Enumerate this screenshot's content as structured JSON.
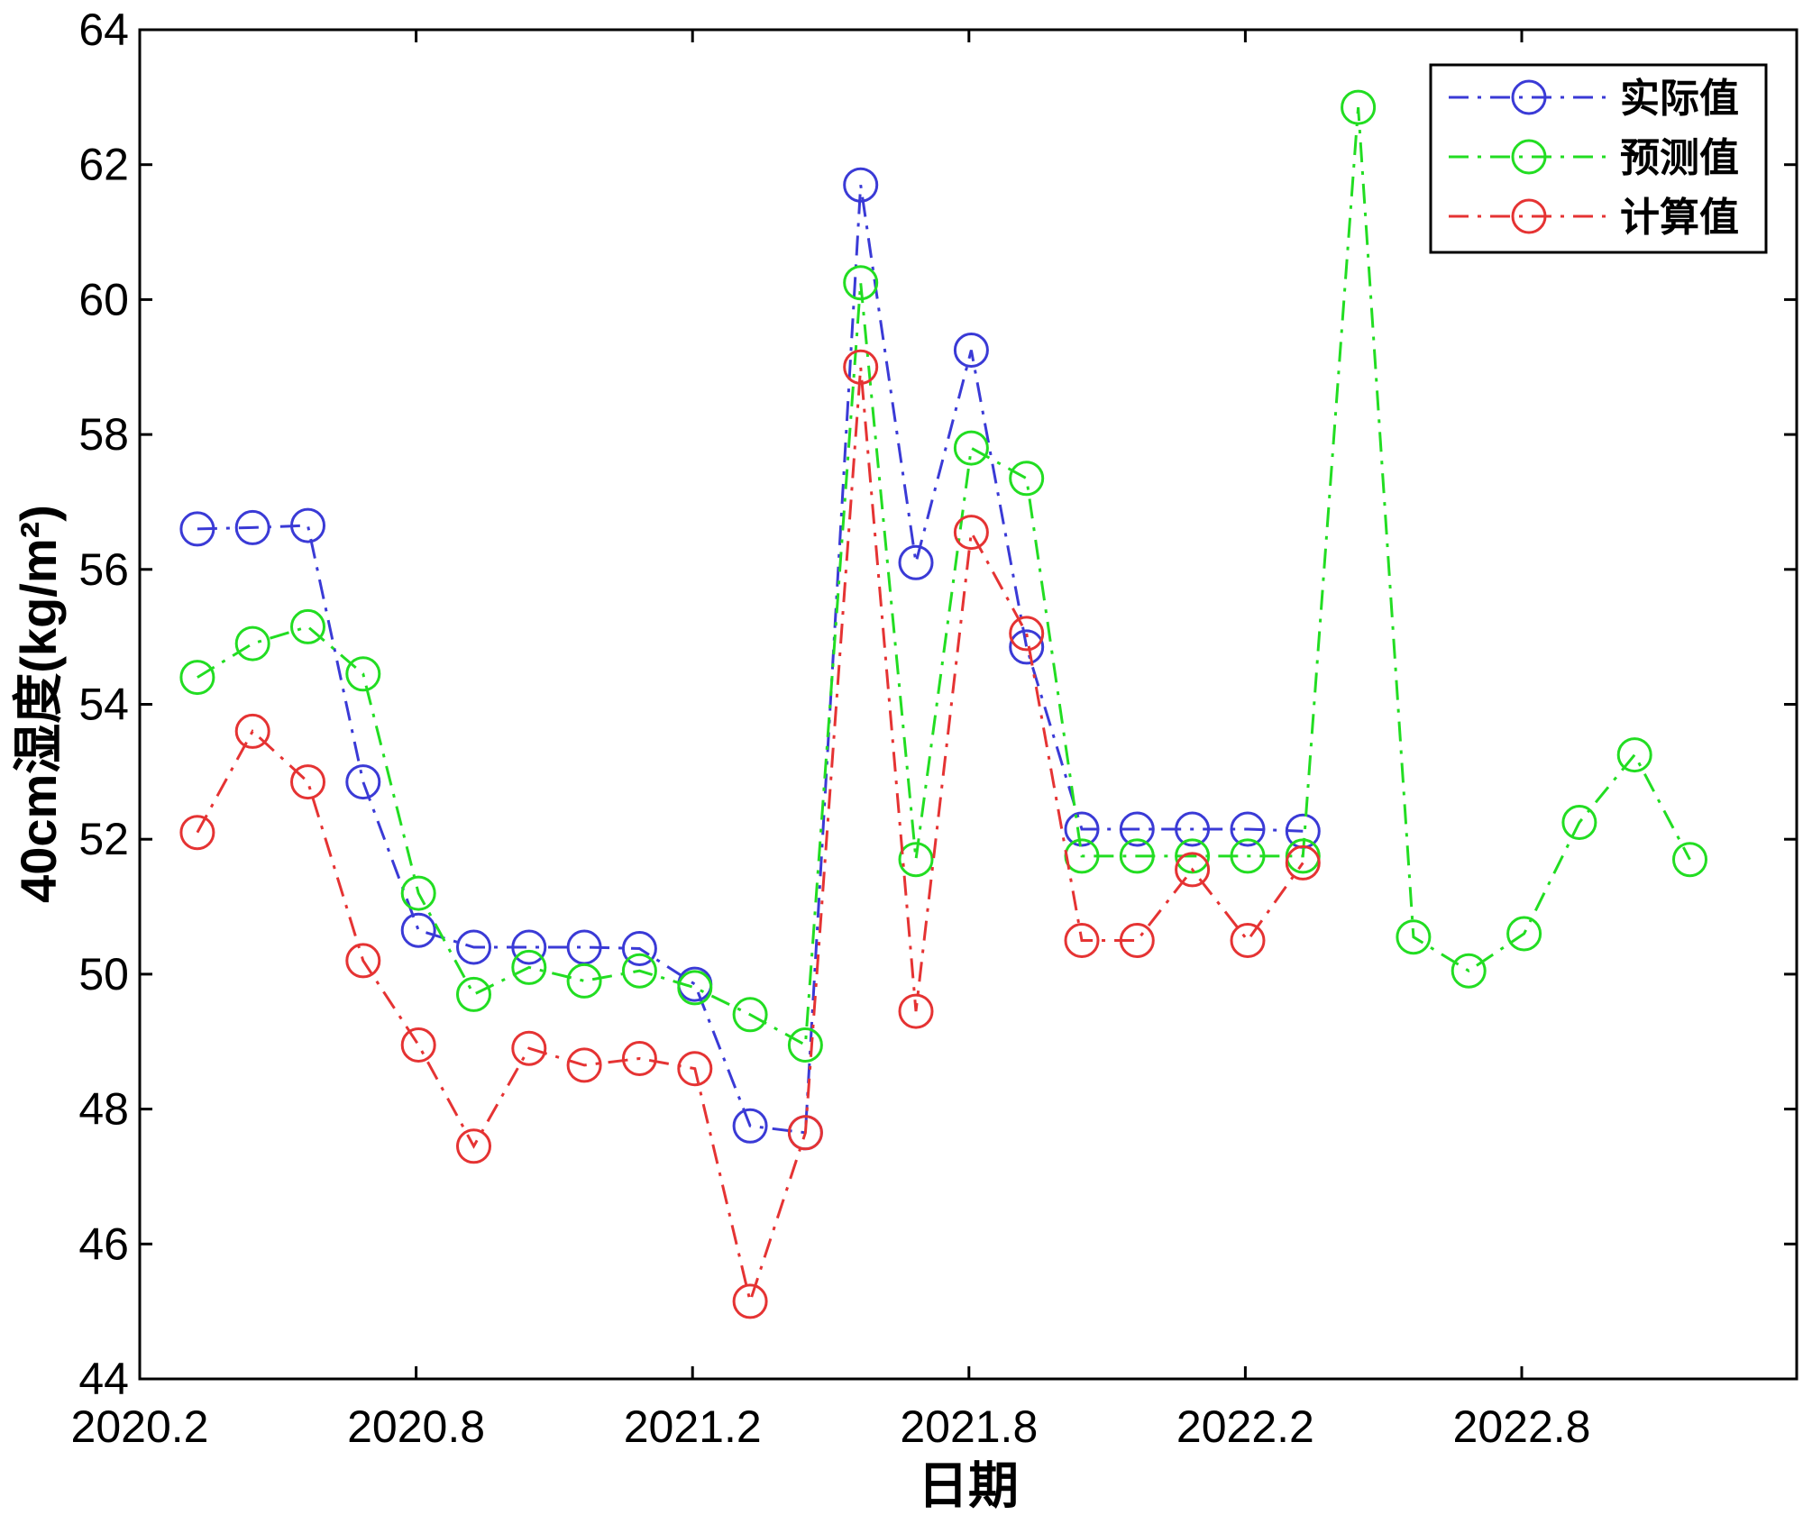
{
  "chart_data": {
    "type": "line",
    "xlabel": "日期",
    "ylabel": "40cm湿度(kg/m²)",
    "ylim": [
      44,
      64
    ],
    "yticks": [
      44,
      46,
      48,
      50,
      52,
      54,
      56,
      58,
      60,
      62,
      64
    ],
    "xticks": [
      "2020.2",
      "2020.8",
      "2021.2",
      "2021.8",
      "2022.2",
      "2022.8"
    ],
    "xtick_index": [
      0,
      6,
      12,
      18,
      24,
      30
    ],
    "x_start_index": 1.25,
    "x_step_index": 1.2,
    "legend": "top-right",
    "grid": false,
    "series": [
      {
        "name": "实际值",
        "color": "#3a3ad6",
        "values": [
          56.6,
          56.62,
          56.65,
          52.85,
          50.65,
          50.4,
          50.4,
          50.4,
          50.38,
          49.85,
          47.75,
          47.65,
          61.7,
          56.1,
          59.25,
          54.85,
          52.15,
          52.15,
          52.15,
          52.15,
          52.12
        ]
      },
      {
        "name": "预测值",
        "color": "#22dd22",
        "values": [
          54.4,
          54.9,
          55.15,
          54.45,
          51.2,
          49.7,
          50.1,
          49.9,
          50.05,
          49.8,
          49.4,
          48.95,
          60.25,
          51.7,
          57.8,
          57.35,
          51.75,
          51.75,
          51.75,
          51.75,
          51.75,
          62.85,
          50.55,
          50.05,
          50.6,
          52.25,
          53.25,
          51.7
        ]
      },
      {
        "name": "计算值",
        "color": "#e53333",
        "values": [
          52.1,
          53.6,
          52.85,
          50.2,
          48.95,
          47.45,
          48.9,
          48.65,
          48.75,
          48.6,
          45.15,
          47.65,
          59.0,
          49.45,
          56.55,
          55.05,
          50.5,
          50.5,
          51.55,
          50.5,
          51.65
        ]
      }
    ]
  }
}
